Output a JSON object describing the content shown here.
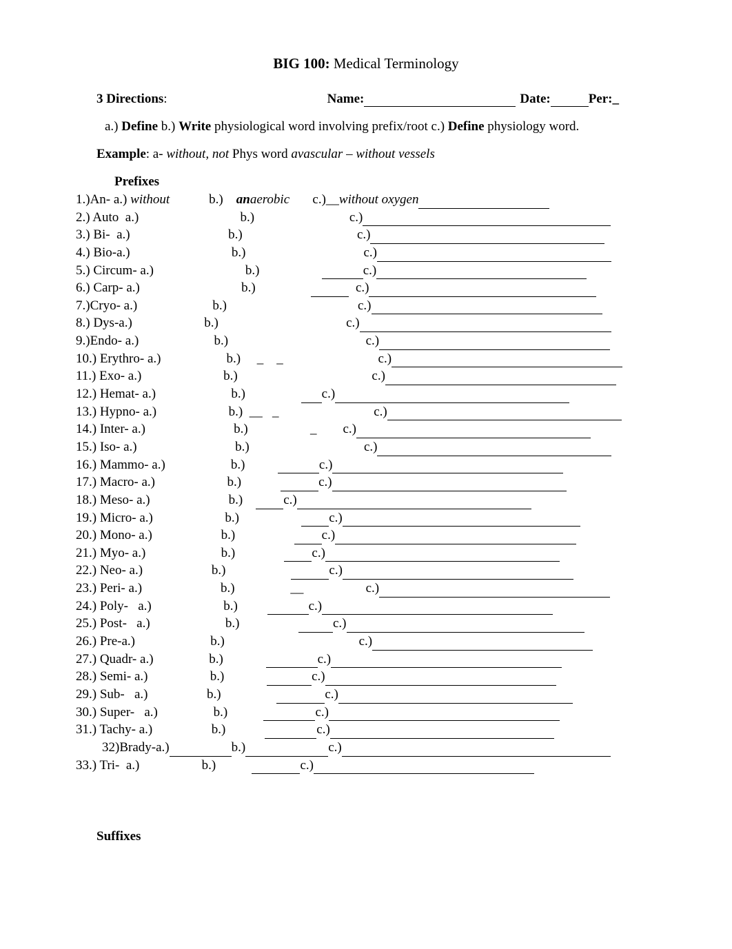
{
  "title_bold": "BIG 100:",
  "title_rest": " Medical Terminology",
  "dir_num": "3 D",
  "dir_rest": "irections",
  "name_label": "Name:",
  "date_label": "Date:",
  "per_label": "Per:_",
  "instr_a": "a.) ",
  "instr_define": "Define",
  "instr_b": " b.) ",
  "instr_write": "Write",
  "instr_text1": " physiological word involving prefix/root c.) ",
  "instr_define2": "Define",
  "instr_text2": " physiology word.",
  "ex_label": "Example",
  "ex_a": ": a- ",
  "ex_without": "without, not",
  "ex_mid": "    Phys word ",
  "ex_av": "avascular – without vessels",
  "prefixes_head": "Prefixes",
  "suffixes_head": "Suffixes",
  "rows": [
    {
      "a": "1.)An- a.) ",
      "a_i": "without",
      "a_pad": "            ",
      "b": "b.)    ",
      "b_bi": "an",
      "b_i": "aerobic",
      "b_pad": "       ",
      "c": "c.)__",
      "c_i": "without oxygen",
      "cline": 190
    },
    {
      "a": "2.) Auto  a.)",
      "a_pad": "                               ",
      "b": "b.)",
      "b_pad": "                             ",
      "c": "c.)",
      "cline": 360
    },
    {
      "a": "3.) Bi-  a.)",
      "a_pad": "                              ",
      "b": "b.)",
      "b_pad": "                                   ",
      "c": "c.)",
      "cline": 340
    },
    {
      "a": "4.) Bio-a.)",
      "a_pad": "                               ",
      "b": "b.)",
      "b_pad": "                                    ",
      "c": "c.)",
      "cline": 340
    },
    {
      "a": "5.) Circum- a.)",
      "a_pad": "                            ",
      "b": "b.)",
      "b_pad": "                   ",
      "pre_c": 60,
      "c": "c.)",
      "cline": 305
    },
    {
      "a": "6.) Carp- a.)",
      "a_pad": "                               ",
      "b": "b.)",
      "b_pad": "                 ",
      "pre_c": 55,
      "c": "  c.)",
      "cline": 330
    },
    {
      "a": "7.)Cryo- a.)",
      "a_pad": "                       ",
      "b": "b.)",
      "b_pad": "                                        ",
      "c": "c.)",
      "cline": 335
    },
    {
      "a": "8.) Dys-a.)",
      "a_pad": "                      ",
      "b": "b.)",
      "b_pad": "                                       ",
      "c": "c.)",
      "cline": 365
    },
    {
      "a": "9.)Endo- a.)",
      "a_pad": "                       ",
      "b": "b.)",
      "b_pad": "                                          ",
      "c": "c.)",
      "cline": 335
    },
    {
      "a": "10.) Erythro- a.)",
      "a_pad": "                    ",
      "b": "b.)",
      "b_pad": "     _    _                             ",
      "c": "c.)",
      "cline": 335
    },
    {
      "a": "11.) Exo- a.)",
      "a_pad": "                         ",
      "b": "b.)",
      "b_pad": "                                         ",
      "c": "c.)",
      "cline": 335
    },
    {
      "a": "12.) Hemat- a.)",
      "a_pad": "                       ",
      "b": "b.)",
      "b_pad": "                 ",
      "mid_u": 30,
      "mid_pad": "           ",
      "c": "c.)",
      "cline": 340
    },
    {
      "a": "13.) Hypno- a.)",
      "a_pad": "                      ",
      "b": "b.)",
      "b_pad": "  __   _                             ",
      "c": "c.)",
      "cline": 340
    },
    {
      "a": "14.) Inter- a.)",
      "a_pad": "                           ",
      "b": "b.)",
      "b_pad": "                   _        ",
      "c": "c.)",
      "cline": 340
    },
    {
      "a": "15.) Iso- a.)",
      "a_pad": "                              ",
      "b": "b.)",
      "b_pad": "                                   ",
      "c": "c.)",
      "cline": 340
    },
    {
      "a": "16.) Mammo- a.)",
      "a_pad": "                    ",
      "b": "b.)",
      "b_pad": "          ",
      "mid_u": 60,
      "mid_pad": "             ",
      "c": "c.)",
      "cline": 335
    },
    {
      "a": "17.) Macro- a.)",
      "a_pad": "                      ",
      "b": "b.)",
      "b_pad": "            ",
      "mid_u": 55,
      "mid_pad": "        ",
      "c": "c.)",
      "cline": 340
    },
    {
      "a": "18.) Meso- a.)",
      "a_pad": "                        ",
      "b": "b.)",
      "b_pad": "    ",
      "mid_u": 40,
      "mid_pad": "                  ",
      "c": "c.)",
      "cline": 340
    },
    {
      "a": "19.) Micro- a.)",
      "a_pad": "                      ",
      "b": "b.)",
      "b_pad": "                   ",
      "mid_u": 40,
      "mid_pad": "  ",
      "c": "c.)",
      "cline": 345
    },
    {
      "a": "20.) Mono- a.)",
      "a_pad": "                     ",
      "b": "b.)",
      "b_pad": "                  ",
      "mid_u": 40,
      "mid_pad": "  ",
      "c": "c.)",
      "cline": 350
    },
    {
      "a": "21.) Myo- a.)",
      "a_pad": "                       ",
      "b": "b.)",
      "b_pad": "               ",
      "mid_u": 40,
      "mid_pad": "        ",
      "c": "c.)",
      "cline": 340
    },
    {
      "a": "22.) Neo- a.)",
      "a_pad": "                     ",
      "b": "b.)",
      "b_pad": "                    ",
      "mid_u": 55,
      "mid_pad": "    ",
      "c": "c.)",
      "cline": 335
    },
    {
      "a": "23.) Peri- a.)",
      "a_pad": "                        ",
      "b": "b.)",
      "b_pad": "                 __                   ",
      "c": "c.)",
      "cline": 335
    },
    {
      "a": "24.) Poly-   a.)",
      "a_pad": "                      ",
      "b": "b.)",
      "b_pad": "         ",
      "mid_u": 60,
      "mid_pad": "               ",
      "c": "c.)",
      "cline": 335
    },
    {
      "a": "25.) Post-   a.)",
      "a_pad": "                       ",
      "b": "b.)",
      "b_pad": "                  ",
      "mid_u": 50,
      "mid_pad": "  ",
      "c": "c.)",
      "cline": 345
    },
    {
      "a": "26.) Pre-a.)",
      "a_pad": "                       ",
      "b": "b.)",
      "b_pad": "                                         ",
      "c": "c.)",
      "cline": 320
    },
    {
      "a": "27.) Quadr- a.)",
      "a_pad": "                 ",
      "b": "b.)",
      "b_pad": "             ",
      "mid_u": 75,
      "mid_pad": "           ",
      "c": "c.)",
      "cline": 335
    },
    {
      "a": "28.) Semi- a.)",
      "a_pad": "                   ",
      "b": "b.)",
      "b_pad": "             ",
      "mid_u": 65,
      "mid_pad": "            ",
      "c": "c.)",
      "cline": 335
    },
    {
      "a": "29.) Sub-   a.)",
      "a_pad": "                  ",
      "b": "b.)",
      "b_pad": "                 ",
      "mid_u": 70,
      "mid_pad": "      ",
      "c": "c.)",
      "cline": 340
    },
    {
      "a": "30.) Super-   a.)",
      "a_pad": "                 ",
      "b": "b.)",
      "b_pad": "           ",
      "mid_u": 75,
      "mid_pad": "          ",
      "c": "c.)",
      "cline": 335
    },
    {
      "a": "31.) Tachy- a.)",
      "a_pad": "                  ",
      "b": "b.)",
      "b_pad": "            ",
      "mid_u": 75,
      "mid_pad": "             ",
      "c": "c.)",
      "cline": 325
    },
    {
      "a": "        32)Brady-a.)",
      "a_pad": "",
      "pre_b_u": 90,
      "b": "b.)",
      "b_pad": "",
      "mid_u": 120,
      "mid_pad": "",
      "c": "c.)",
      "cline": 390
    },
    {
      "a": "33.) Tri-  a.)",
      "a_pad": "                   ",
      "b": "b.)",
      "b_pad": "           ",
      "mid_u": 70,
      "mid_pad": "                ",
      "c": "c.)",
      "cline": 320
    }
  ]
}
